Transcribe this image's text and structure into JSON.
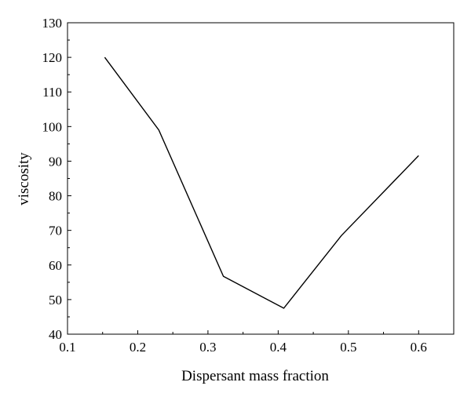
{
  "chart_data": {
    "type": "line",
    "title": "",
    "xlabel": "Dispersant mass fraction",
    "ylabel": "viscosity",
    "xlim": [
      0.1,
      0.65
    ],
    "ylim": [
      40,
      130
    ],
    "xticks": [
      0.1,
      0.2,
      0.3,
      0.4,
      0.5,
      0.6
    ],
    "yticks": [
      40,
      50,
      60,
      70,
      80,
      90,
      100,
      110,
      120,
      130
    ],
    "xtick_labels": [
      "0.1",
      "0.2",
      "0.3",
      "0.4",
      "0.5",
      "0.6"
    ],
    "ytick_labels": [
      "40",
      "50",
      "60",
      "70",
      "80",
      "90",
      "100",
      "110",
      "120",
      "130"
    ],
    "grid": false,
    "legend": "none",
    "series": [
      {
        "color": "#000000",
        "x": [
          0.153,
          0.23,
          0.322,
          0.408,
          0.49,
          0.6
        ],
        "y": [
          120,
          99,
          56.7,
          47.5,
          68.5,
          91.6
        ]
      }
    ]
  }
}
